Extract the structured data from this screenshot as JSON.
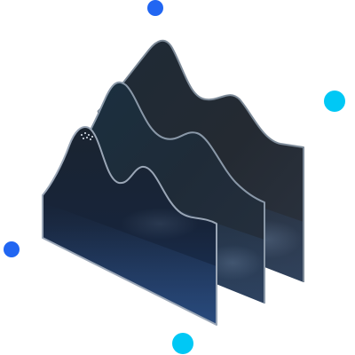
{
  "illustration": {
    "subject": "stacked-3d-area-layers",
    "colors": {
      "background": "#ffffff",
      "dot_blue": "#2166f2",
      "dot_cyan": "#00c8f5",
      "layer_dark": "#141a24",
      "layer_mid": "#1c2a3a",
      "layer_blue": "#1b3763",
      "layer_glow": "#3f6aa8",
      "outline": "#8a98a8"
    },
    "decorations": [
      {
        "name": "top-dot",
        "color": "dot_blue"
      },
      {
        "name": "right-dot",
        "color": "dot_cyan"
      },
      {
        "name": "left-dot",
        "color": "dot_blue"
      },
      {
        "name": "bottom-dot",
        "color": "dot_cyan"
      }
    ],
    "layers": [
      {
        "name": "back-layer"
      },
      {
        "name": "middle-layer"
      },
      {
        "name": "front-layer"
      }
    ]
  }
}
